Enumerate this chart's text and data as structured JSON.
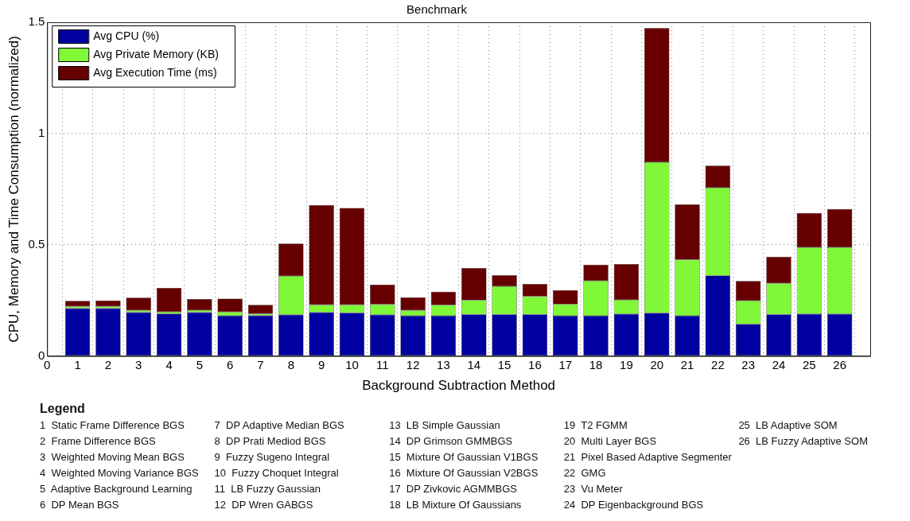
{
  "chart_data": {
    "type": "bar",
    "stacked": true,
    "title": "Benchmark",
    "xlabel": "Background Subtraction Method",
    "ylabel": "CPU, Memory and Time Consumption (normalized)",
    "x": [
      1,
      2,
      3,
      4,
      5,
      6,
      7,
      8,
      9,
      10,
      11,
      12,
      13,
      14,
      15,
      16,
      17,
      18,
      19,
      20,
      21,
      22,
      23,
      24,
      25,
      26
    ],
    "xlim": [
      0,
      27
    ],
    "xticks": [
      0,
      1,
      2,
      3,
      4,
      5,
      6,
      7,
      8,
      9,
      10,
      11,
      12,
      13,
      14,
      15,
      16,
      17,
      18,
      19,
      20,
      21,
      22,
      23,
      24,
      25,
      26
    ],
    "ylim": [
      0,
      1.5
    ],
    "yticks": [
      0,
      0.5,
      1,
      1.5
    ],
    "grid": true,
    "legend": "top left",
    "series": [
      {
        "name": "Avg CPU (%)",
        "color": "#0000a0",
        "values": [
          0.214,
          0.214,
          0.196,
          0.19,
          0.196,
          0.181,
          0.182,
          0.185,
          0.196,
          0.194,
          0.185,
          0.181,
          0.181,
          0.187,
          0.187,
          0.187,
          0.181,
          0.181,
          0.189,
          0.193,
          0.181,
          0.361,
          0.143,
          0.187,
          0.189,
          0.189
        ]
      },
      {
        "name": "Avg Private Memory (KB)",
        "color": "#80f838",
        "values": [
          0.009,
          0.009,
          0.009,
          0.009,
          0.01,
          0.017,
          0.008,
          0.175,
          0.034,
          0.036,
          0.047,
          0.024,
          0.048,
          0.064,
          0.126,
          0.081,
          0.052,
          0.157,
          0.063,
          0.678,
          0.252,
          0.395,
          0.106,
          0.14,
          0.299,
          0.299
        ]
      },
      {
        "name": "Avg Execution Time (ms)",
        "color": "#660000",
        "values": [
          0.025,
          0.027,
          0.057,
          0.107,
          0.05,
          0.06,
          0.04,
          0.145,
          0.449,
          0.435,
          0.089,
          0.059,
          0.06,
          0.144,
          0.05,
          0.056,
          0.063,
          0.073,
          0.161,
          0.603,
          0.248,
          0.1,
          0.088,
          0.119,
          0.155,
          0.173
        ]
      }
    ],
    "annotations": [
      "Legend",
      "1  Static Frame Difference BGS",
      "2  Frame Difference BGS",
      "3  Weighted Moving Mean BGS",
      "4  Weighted Moving Variance BGS",
      "5  Adaptive Background Learning",
      "6  DP Mean BGS",
      "7  DP Adaptive Median BGS",
      "8  DP Prati Mediod BGS",
      "9  Fuzzy Sugeno Integral",
      "10  Fuzzy Choquet Integral",
      "11  LB Fuzzy Gaussian",
      "12  DP Wren GABGS",
      "13  LB Simple Gaussian",
      "14  DP Grimson GMMBGS",
      "15  Mixture Of Gaussian V1BGS",
      "16  Mixture Of Gaussian V2BGS",
      "17  DP Zivkovic AGMMBGS",
      "18  LB Mixture Of Gaussians",
      "19  T2 FGMM",
      "20  Multi Layer BGS",
      "21  Pixel Based Adaptive Segmenter",
      "22  GMG",
      "23  Vu Meter",
      "24  DP Eigenbackground BGS",
      "25  LB Adaptive SOM",
      "26  LB Fuzzy Adaptive SOM"
    ]
  }
}
